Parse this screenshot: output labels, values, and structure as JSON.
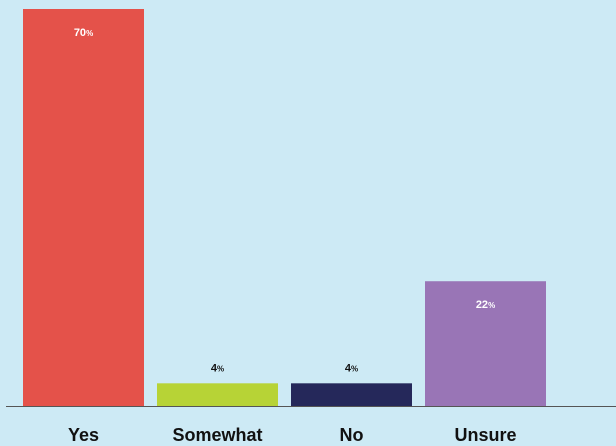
{
  "chart_data": {
    "type": "bar",
    "title": "",
    "xlabel": "",
    "ylabel": "",
    "ylim": [
      0,
      70
    ],
    "grid": false,
    "legend": "none",
    "categories": [
      "Yes",
      "Somewhat",
      "No",
      "Unsure"
    ],
    "values": [
      70,
      4,
      4,
      22
    ],
    "value_unit": "%",
    "colors": [
      "#e4524a",
      "#b7d336",
      "#25285a",
      "#9975b6"
    ],
    "value_label_colors": [
      "#ffffff",
      "#111111",
      "#111111",
      "#ffffff"
    ]
  },
  "background_color": "#cdeaf5",
  "axis_color": "#555555"
}
